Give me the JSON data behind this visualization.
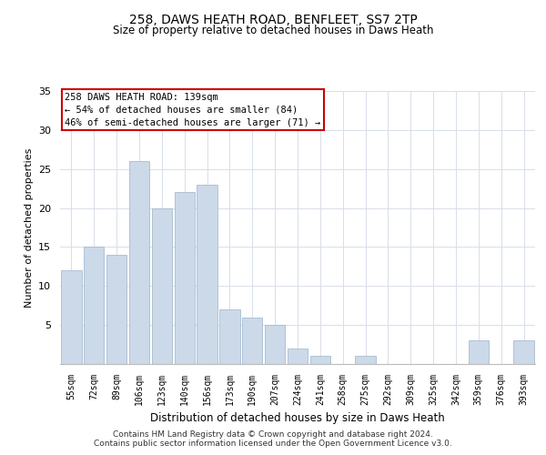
{
  "title1": "258, DAWS HEATH ROAD, BENFLEET, SS7 2TP",
  "title2": "Size of property relative to detached houses in Daws Heath",
  "xlabel": "Distribution of detached houses by size in Daws Heath",
  "ylabel": "Number of detached properties",
  "categories": [
    "55sqm",
    "72sqm",
    "89sqm",
    "106sqm",
    "123sqm",
    "140sqm",
    "156sqm",
    "173sqm",
    "190sqm",
    "207sqm",
    "224sqm",
    "241sqm",
    "258sqm",
    "275sqm",
    "292sqm",
    "309sqm",
    "325sqm",
    "342sqm",
    "359sqm",
    "376sqm",
    "393sqm"
  ],
  "values": [
    12,
    15,
    14,
    26,
    20,
    22,
    23,
    7,
    6,
    5,
    2,
    1,
    0,
    1,
    0,
    0,
    0,
    0,
    3,
    0,
    3
  ],
  "bar_color": "#ccd9e8",
  "bar_edgecolor": "#9ab4cc",
  "highlight_index": 12,
  "grid_color": "#d8dfe8",
  "annotation_text": "258 DAWS HEATH ROAD: 139sqm\n← 54% of detached houses are smaller (84)\n46% of semi-detached houses are larger (71) →",
  "annotation_box_edgecolor": "#cc0000",
  "ylim": [
    0,
    35
  ],
  "yticks": [
    0,
    5,
    10,
    15,
    20,
    25,
    30,
    35
  ],
  "footer1": "Contains HM Land Registry data © Crown copyright and database right 2024.",
  "footer2": "Contains public sector information licensed under the Open Government Licence v3.0."
}
